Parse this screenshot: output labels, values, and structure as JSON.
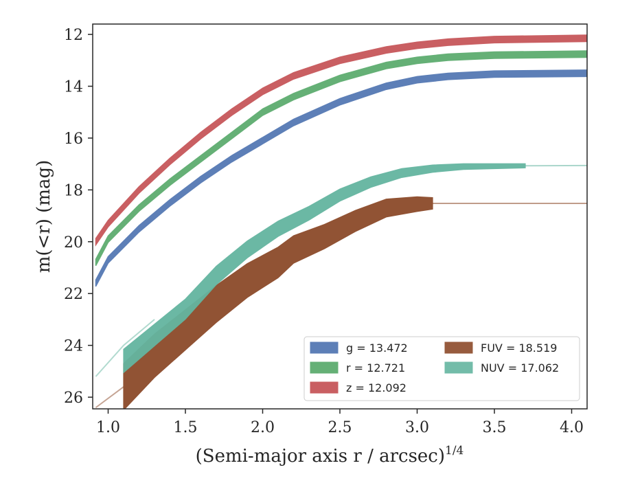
{
  "chart_data": {
    "type": "line",
    "title": "",
    "xlabel": "(Semi-major axis r / arcsec)",
    "xlabel_sup": "1/4",
    "ylabel": "m(<r) (mag)",
    "xlim": [
      0.9,
      4.1
    ],
    "ylim": [
      26.45,
      11.6
    ],
    "y_inverted": true,
    "grid": false,
    "legend_position": "lower-right",
    "xticks": [
      "1.0",
      "1.5",
      "2.0",
      "2.5",
      "3.0",
      "3.5",
      "4.0"
    ],
    "yticks": [
      "12",
      "14",
      "16",
      "18",
      "20",
      "22",
      "24",
      "26"
    ],
    "series": [
      {
        "name": "g = 13.472",
        "color": "#4c72b0",
        "x": [
          0.92,
          1.0,
          1.2,
          1.4,
          1.6,
          1.8,
          2.0,
          2.2,
          2.5,
          2.8,
          3.0,
          3.2,
          3.5,
          4.1
        ],
        "y": [
          21.6,
          20.7,
          19.5,
          18.5,
          17.6,
          16.8,
          16.1,
          15.4,
          14.6,
          14.0,
          13.75,
          13.62,
          13.53,
          13.5
        ],
        "width": 0.25,
        "faded_after": null
      },
      {
        "name": "r = 12.721",
        "color": "#55a868",
        "x": [
          0.92,
          1.0,
          1.2,
          1.4,
          1.6,
          1.8,
          2.0,
          2.2,
          2.5,
          2.8,
          3.0,
          3.2,
          3.5,
          4.1
        ],
        "y": [
          20.8,
          19.9,
          18.7,
          17.7,
          16.8,
          15.9,
          15.0,
          14.4,
          13.7,
          13.2,
          13.0,
          12.88,
          12.8,
          12.76
        ],
        "width": 0.25,
        "faded_after": null
      },
      {
        "name": "z = 12.092",
        "color": "#c44e52",
        "x": [
          0.92,
          1.0,
          1.2,
          1.4,
          1.6,
          1.8,
          2.0,
          2.2,
          2.5,
          2.8,
          3.0,
          3.2,
          3.5,
          4.1
        ],
        "y": [
          20.0,
          19.3,
          18.0,
          16.9,
          15.9,
          15.0,
          14.2,
          13.6,
          13.0,
          12.6,
          12.42,
          12.3,
          12.2,
          12.15
        ],
        "width": 0.25,
        "faded_after": null
      },
      {
        "name": "FUV = 18.519",
        "color": "#8c4a2a",
        "x": [
          1.1,
          1.3,
          1.5,
          1.7,
          1.9,
          2.1,
          2.2,
          2.4,
          2.6,
          2.8,
          3.0,
          3.1,
          3.5,
          4.1
        ],
        "y": [
          25.6,
          24.4,
          23.4,
          22.4,
          21.5,
          20.8,
          20.3,
          19.8,
          19.2,
          18.7,
          18.55,
          18.52,
          18.52,
          18.52
        ],
        "width_start": 1.8,
        "width_end": 0.2,
        "faded_after": 3.1,
        "faded_before": 1.1,
        "faded_before_x": [
          0.92,
          1.1
        ],
        "faded_before_y": [
          26.4,
          25.6
        ]
      },
      {
        "name": "NUV = 17.062",
        "color": "#64b5a0",
        "x": [
          1.1,
          1.3,
          1.5,
          1.7,
          1.9,
          2.1,
          2.3,
          2.5,
          2.7,
          2.9,
          3.1,
          3.3,
          3.7,
          4.1
        ],
        "y": [
          24.6,
          23.6,
          22.6,
          21.3,
          20.3,
          19.5,
          18.9,
          18.2,
          17.7,
          17.35,
          17.18,
          17.1,
          17.07,
          17.06
        ],
        "width_start": 0.9,
        "width_end": 0.1,
        "faded_after": 3.7,
        "faded_before": 1.1,
        "faded_before_x": [
          0.92,
          1.1,
          1.3
        ],
        "faded_before_y": [
          25.2,
          24.0,
          23.0
        ]
      }
    ]
  }
}
